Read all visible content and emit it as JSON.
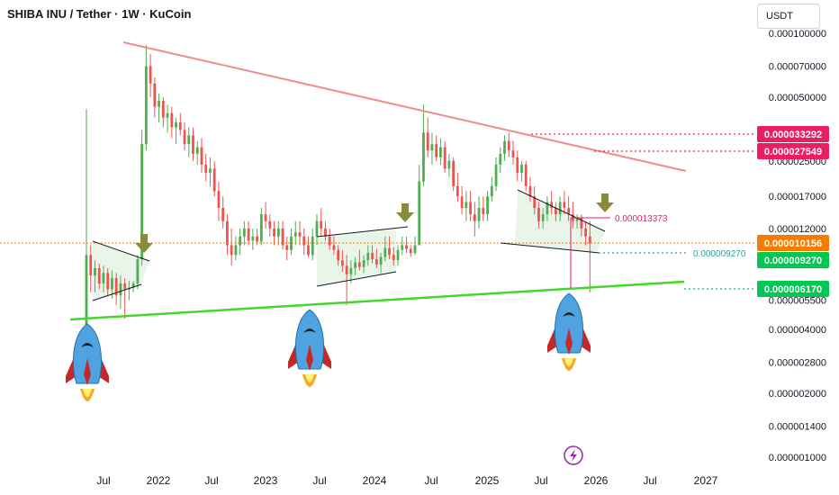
{
  "chart_data": {
    "type": "candlestick",
    "title": "SHIBA INU / Tether · 1W · KuCoin",
    "currency": "USDT",
    "yscale": "log",
    "ylim": [
      9e-07,
      0.000115
    ],
    "x_ticks": [
      "Jul",
      "2022",
      "Jul",
      "2023",
      "Jul",
      "2024",
      "Jul",
      "2025",
      "Jul",
      "2026",
      "Jul",
      "2027"
    ],
    "y_ticks": [
      "0.000100000",
      "0.000070000",
      "0.000050000",
      "0.000025000",
      "0.000017000",
      "0.000012000",
      "0.000005500",
      "0.000004000",
      "0.000002800",
      "0.000002000",
      "0.000001400",
      "0.000001000"
    ],
    "price_labels": [
      {
        "text": "0.000033292",
        "color": "#e91e63"
      },
      {
        "text": "0.000027549",
        "color": "#e91e63"
      },
      {
        "text": "0.000010156",
        "color": "#f57c00"
      },
      {
        "text": "0.000009270",
        "color": "#00c853"
      },
      {
        "text": "0.000006170",
        "color": "#00c853"
      }
    ],
    "annotations": [
      {
        "text": "0.000013373",
        "color": "#e91e63"
      },
      {
        "text": "0.000009270",
        "color": "#26a69a"
      }
    ],
    "colors": {
      "up": "#4caf50",
      "down": "#ef5350",
      "resistance": "#f28b8b",
      "support": "#44d62c"
    },
    "series": [
      {
        "values": [
          [
            3.1e-06,
            4.4e-05,
            3.5e-06,
            9e-06
          ],
          [
            9e-06,
            1e-05,
            6e-06,
            7.2e-06
          ],
          [
            7.2e-06,
            8.5e-06,
            6e-06,
            7.8e-06
          ],
          [
            7.8e-06,
            8.2e-06,
            6.2e-06,
            6.6e-06
          ],
          [
            6.6e-06,
            8e-06,
            6e-06,
            7.4e-06
          ],
          [
            7.4e-06,
            7.8e-06,
            5.8e-06,
            6.2e-06
          ],
          [
            6.2e-06,
            7.6e-06,
            5.6e-06,
            7e-06
          ],
          [
            7e-06,
            7.4e-06,
            5.2e-06,
            5.8e-06
          ],
          [
            5.8e-06,
            7.2e-06,
            5e-06,
            6.6e-06
          ],
          [
            6.6e-06,
            7e-06,
            4.5e-06,
            6.2e-06
          ],
          [
            6.2e-06,
            6.8e-06,
            5.5e-06,
            6.3e-06
          ],
          [
            6.3e-06,
            6.8e-06,
            6e-06,
            6.6e-06
          ],
          [
            6.6e-06,
            9e-06,
            6.2e-06,
            8.6e-06
          ],
          [
            8.6e-06,
            3.5e-05,
            8e-06,
            3e-05
          ],
          [
            3e-05,
            8.8e-05,
            2.8e-05,
            7e-05
          ],
          [
            7e-05,
            8e-05,
            5e-05,
            5.8e-05
          ],
          [
            5.8e-05,
            6.2e-05,
            4e-05,
            4.5e-05
          ],
          [
            4.5e-05,
            5.2e-05,
            3.8e-05,
            4.8e-05
          ],
          [
            4.8e-05,
            5e-05,
            3.6e-05,
            4e-05
          ],
          [
            4e-05,
            4.6e-05,
            3.4e-05,
            4.2e-05
          ],
          [
            4.2e-05,
            4.5e-05,
            3.2e-05,
            3.6e-05
          ],
          [
            3.6e-05,
            4e-05,
            3e-05,
            3.8e-05
          ],
          [
            3.8e-05,
            4.2e-05,
            3.3e-05,
            3.5e-05
          ],
          [
            3.5e-05,
            3.8e-05,
            2.8e-05,
            3e-05
          ],
          [
            3e-05,
            3.6e-05,
            2.6e-05,
            3.3e-05
          ],
          [
            3.3e-05,
            3.6e-05,
            2.5e-05,
            2.7e-05
          ],
          [
            2.7e-05,
            3.1e-05,
            2.4e-05,
            2.9e-05
          ],
          [
            2.9e-05,
            3.2e-05,
            2.2e-05,
            2.4e-05
          ],
          [
            2.4e-05,
            2.7e-05,
            2e-05,
            2.2e-05
          ],
          [
            2.2e-05,
            2.6e-05,
            1.9e-05,
            2.3e-05
          ],
          [
            2.3e-05,
            2.5e-05,
            1.7e-05,
            1.8e-05
          ],
          [
            1.8e-05,
            2e-05,
            1.3e-05,
            1.5e-05
          ],
          [
            1.5e-05,
            1.7e-05,
            1.2e-05,
            1.3e-05
          ],
          [
            1.3e-05,
            1.4e-05,
            9e-06,
            1e-05
          ],
          [
            1e-05,
            1.2e-05,
            8e-06,
            9e-06
          ],
          [
            9e-06,
            1.1e-05,
            8.5e-06,
            1e-05
          ],
          [
            1e-05,
            1.2e-05,
            9e-06,
            1.1e-05
          ],
          [
            1.1e-05,
            1.3e-05,
            1e-05,
            1.2e-05
          ],
          [
            1.2e-05,
            1.3e-05,
            1e-05,
            1.05e-05
          ],
          [
            1.05e-05,
            1.2e-05,
            9.5e-06,
            1.1e-05
          ],
          [
            1.1e-05,
            1.2e-05,
            1e-05,
            1.04e-05
          ],
          [
            1.04e-05,
            1.5e-05,
            1e-05,
            1.4e-05
          ],
          [
            1.4e-05,
            1.6e-05,
            1.2e-05,
            1.3e-05
          ],
          [
            1.3e-05,
            1.4e-05,
            1.1e-05,
            1.2e-05
          ],
          [
            1.2e-05,
            1.3e-05,
            1e-05,
            1.1e-05
          ],
          [
            1.1e-05,
            1.3e-05,
            1e-05,
            1.2e-05
          ],
          [
            1.2e-05,
            1.3e-05,
            9.5e-06,
            1e-05
          ],
          [
            1e-05,
            1.1e-05,
            8.5e-06,
            9.5e-06
          ],
          [
            9.5e-06,
            1.2e-05,
            9e-06,
            1.1e-05
          ],
          [
            1.1e-05,
            1.3e-05,
            1e-05,
            1.15e-05
          ],
          [
            1.15e-05,
            1.3e-05,
            1e-05,
            1.1e-05
          ],
          [
            1.1e-05,
            1.2e-05,
            9e-06,
            1e-05
          ],
          [
            1e-05,
            1.1e-05,
            8.8e-06,
            9e-06
          ],
          [
            9e-06,
            1.2e-05,
            8.5e-06,
            1.1e-05
          ],
          [
            1.1e-05,
            1.4e-05,
            1e-05,
            1.3e-05
          ],
          [
            1.3e-05,
            1.5e-05,
            1.1e-05,
            1.2e-05
          ],
          [
            1.2e-05,
            1.3e-05,
            1.05e-05,
            1.1e-05
          ],
          [
            1.1e-05,
            1.2e-05,
            9.5e-06,
            1e-05
          ],
          [
            1e-05,
            1.1e-05,
            9e-06,
            9.5e-06
          ],
          [
            9.5e-06,
            1e-05,
            8e-06,
            8.5e-06
          ],
          [
            8.5e-06,
            9.5e-06,
            7.5e-06,
            8e-06
          ],
          [
            8e-06,
            9e-06,
            5.2e-06,
            7.3e-06
          ],
          [
            7.3e-06,
            8.5e-06,
            6.6e-06,
            7.8e-06
          ],
          [
            7.8e-06,
            8.8e-06,
            7.2e-06,
            8.3e-06
          ],
          [
            8.3e-06,
            9.5e-06,
            7.6e-06,
            7.9e-06
          ],
          [
            7.9e-06,
            9e-06,
            7.4e-06,
            8.5e-06
          ],
          [
            8.5e-06,
            1e-05,
            8e-06,
            9.2e-06
          ],
          [
            9.2e-06,
            1e-05,
            8.2e-06,
            8.6e-06
          ],
          [
            8.6e-06,
            9.6e-06,
            7.8e-06,
            8.1e-06
          ],
          [
            8.1e-06,
            9.2e-06,
            7.4e-06,
            8.8e-06
          ],
          [
            8.8e-06,
            1.1e-05,
            8.4e-06,
            9.7e-06
          ],
          [
            9.7e-06,
            1.1e-05,
            8.6e-06,
            9e-06
          ],
          [
            9e-06,
            9.8e-06,
            8e-06,
            8.5e-06
          ],
          [
            8.5e-06,
            1e-05,
            8e-06,
            9.5e-06
          ],
          [
            9.5e-06,
            1.1e-05,
            9e-06,
            1e-05
          ],
          [
            1e-05,
            1.1e-05,
            9.2e-06,
            9.6e-06
          ],
          [
            9.6e-06,
            1e-05,
            8.8e-06,
            9.2e-06
          ],
          [
            9.2e-06,
            1.1e-05,
            9e-06,
            1e-05
          ],
          [
            1e-05,
            2.4e-05,
            1e-05,
            2e-05
          ],
          [
            2e-05,
            4.6e-05,
            1.9e-05,
            3.4e-05
          ],
          [
            3.4e-05,
            4e-05,
            2.6e-05,
            2.8e-05
          ],
          [
            2.8e-05,
            3.4e-05,
            2.4e-05,
            3e-05
          ],
          [
            3e-05,
            3.3e-05,
            2.5e-05,
            2.6e-05
          ],
          [
            2.6e-05,
            3.2e-05,
            2.4e-05,
            2.9e-05
          ],
          [
            2.9e-05,
            3.1e-05,
            2.2e-05,
            2.3e-05
          ],
          [
            2.3e-05,
            2.7e-05,
            2.1e-05,
            2.5e-05
          ],
          [
            2.5e-05,
            2.6e-05,
            1.8e-05,
            1.9e-05
          ],
          [
            1.9e-05,
            2.2e-05,
            1.6e-05,
            1.7e-05
          ],
          [
            1.7e-05,
            1.9e-05,
            1.4e-05,
            1.5e-05
          ],
          [
            1.5e-05,
            1.8e-05,
            1.3e-05,
            1.6e-05
          ],
          [
            1.6e-05,
            1.8e-05,
            1.3e-05,
            1.4e-05
          ],
          [
            1.4e-05,
            1.6e-05,
            1.1e-05,
            1.3e-05
          ],
          [
            1.3e-05,
            1.7e-05,
            1.2e-05,
            1.5e-05
          ],
          [
            1.5e-05,
            1.7e-05,
            1.3e-05,
            1.4e-05
          ],
          [
            1.4e-05,
            1.8e-05,
            1.3e-05,
            1.7e-05
          ],
          [
            1.7e-05,
            2.1e-05,
            1.6e-05,
            1.9e-05
          ],
          [
            1.9e-05,
            2.6e-05,
            1.8e-05,
            2.4e-05
          ],
          [
            2.4e-05,
            2.9e-05,
            2.2e-05,
            2.7e-05
          ],
          [
            2.7e-05,
            3.3e-05,
            2.5e-05,
            3.1e-05
          ],
          [
            3.1e-05,
            3.4e-05,
            2.6e-05,
            2.8e-05
          ],
          [
            2.8e-05,
            3.1e-05,
            2.4e-05,
            2.6e-05
          ],
          [
            2.6e-05,
            2.8e-05,
            2e-05,
            2.2e-05
          ],
          [
            2.2e-05,
            2.5e-05,
            2e-05,
            2.4e-05
          ],
          [
            2.4e-05,
            2.5e-05,
            1.8e-05,
            1.9e-05
          ],
          [
            1.9e-05,
            2.1e-05,
            1.6e-05,
            1.7e-05
          ],
          [
            1.7e-05,
            1.9e-05,
            1.4e-05,
            1.5e-05
          ],
          [
            1.5e-05,
            1.6e-05,
            1.2e-05,
            1.3e-05
          ],
          [
            1.3e-05,
            1.5e-05,
            1.2e-05,
            1.4e-05
          ],
          [
            1.4e-05,
            1.7e-05,
            1.3e-05,
            1.6e-05
          ],
          [
            1.6e-05,
            1.8e-05,
            1.4e-05,
            1.5e-05
          ],
          [
            1.5e-05,
            1.6e-05,
            1.3e-05,
            1.4e-05
          ],
          [
            1.4e-05,
            1.7e-05,
            1.3e-05,
            1.6e-05
          ],
          [
            1.6e-05,
            1.8e-05,
            1.4e-05,
            1.5e-05
          ],
          [
            1.5e-05,
            1.7e-05,
            1.3e-05,
            1.4e-05
          ],
          [
            1.4e-05,
            1.6e-05,
            1.2e-05,
            1.3e-05
          ],
          [
            1.3e-05,
            1.4e-05,
            1.2e-05,
            1.35e-05
          ],
          [
            1.35e-05,
            1.4e-05,
            1.1e-05,
            1.2e-05
          ],
          [
            1.2e-05,
            1.3e-05,
            1e-05,
            1.1e-05
          ],
          [
            1.1e-05,
            1.3e-05,
            6e-06,
            1.02e-05
          ]
        ]
      }
    ]
  }
}
